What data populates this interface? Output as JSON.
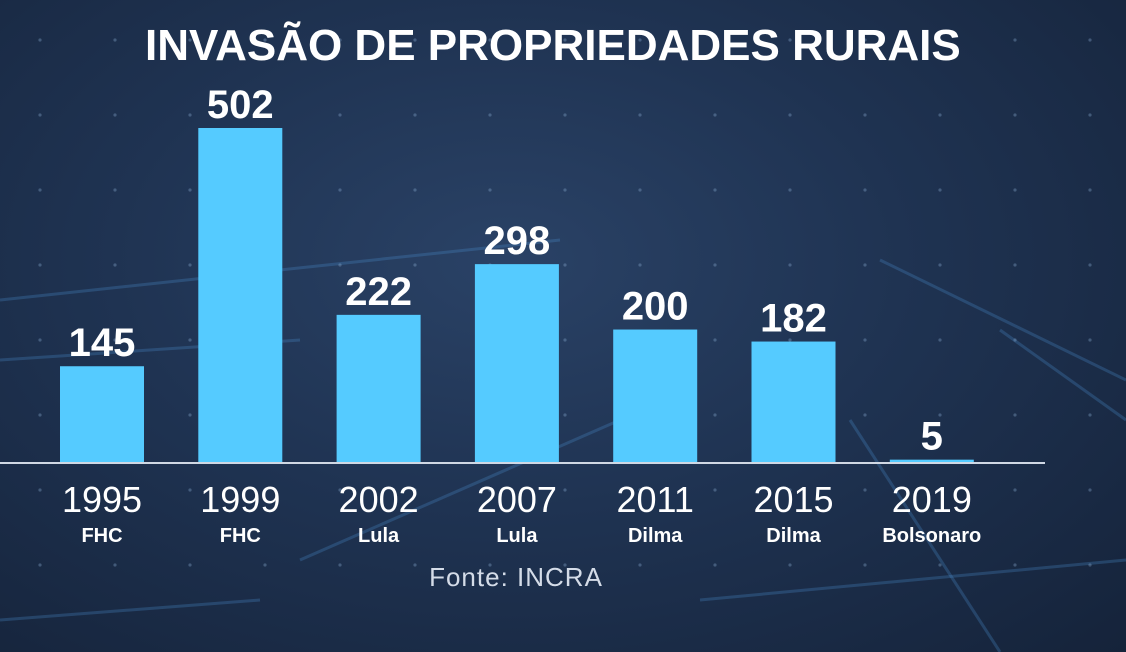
{
  "chart_data": {
    "type": "bar",
    "title": "INVASÃO DE  PROPRIEDADES RURAIS",
    "categories": [
      "1995",
      "1999",
      "2002",
      "2007",
      "2011",
      "2015",
      "2019"
    ],
    "sublabels": [
      "FHC",
      "FHC",
      "Lula",
      "Lula",
      "Dilma",
      "Dilma",
      "Bolsonaro"
    ],
    "values": [
      145,
      502,
      222,
      298,
      200,
      182,
      5
    ],
    "ylim": [
      0,
      502
    ],
    "grid": false,
    "source": "Fonte: INCRA",
    "bar_color": "#55cbff",
    "baseline_color": "#d0d8e4"
  }
}
